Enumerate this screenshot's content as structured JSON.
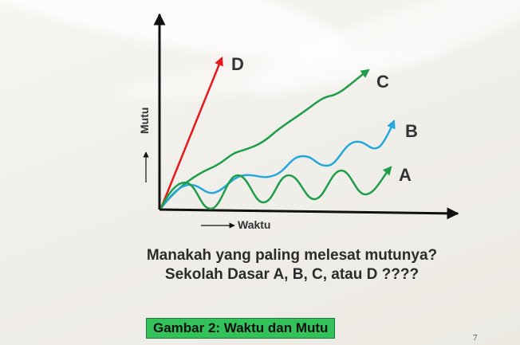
{
  "axes": {
    "y_label": "Mutu",
    "x_label": "Waktu"
  },
  "curves": [
    {
      "label": "D",
      "color": "#e8181a"
    },
    {
      "label": "C",
      "color": "#1f9e4a"
    },
    {
      "label": "B",
      "color": "#23a8dc"
    },
    {
      "label": "A",
      "color": "#1f9e4a"
    }
  ],
  "question": {
    "line1": "Manakah yang paling melesat mutunya?",
    "line2": "Sekolah Dasar A, B, C, atau D ????"
  },
  "caption": "Gambar 2: Waktu dan Mutu",
  "page_number": "7"
}
